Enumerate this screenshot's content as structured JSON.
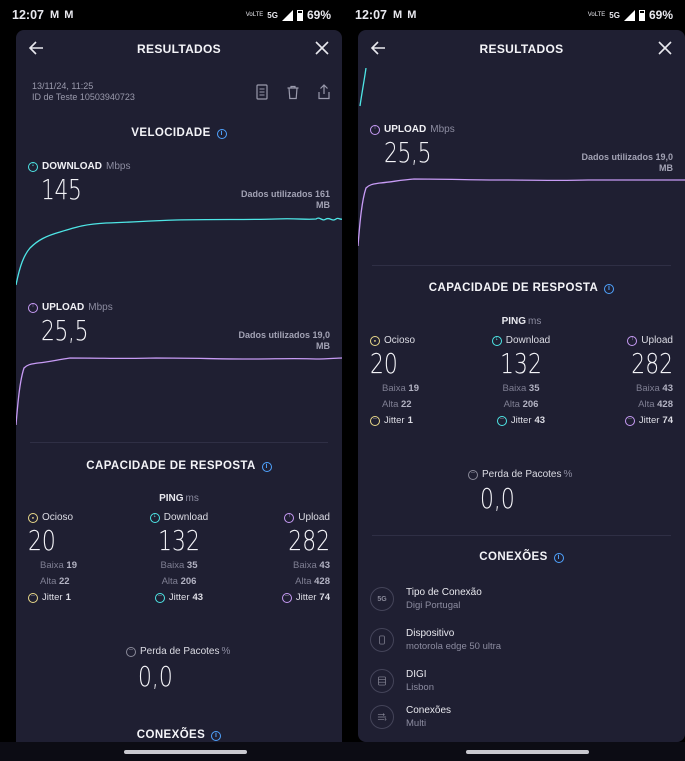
{
  "status": {
    "time": "12:07",
    "mail_icons": "M M",
    "volte": "VoLTE",
    "network": "5G",
    "battery": "69%"
  },
  "header": {
    "title": "RESULTADOS"
  },
  "test": {
    "date": "13/11/24, 11:25",
    "id_label": "ID de Teste 10503940723"
  },
  "speed": {
    "title": "VELOCIDADE",
    "download": {
      "label": "DOWNLOAD",
      "unit": "Mbps",
      "value": "145",
      "data_used_1": "Dados utilizados 161",
      "data_used_2": "MB"
    },
    "upload": {
      "label": "UPLOAD",
      "unit": "Mbps",
      "value": "25,5",
      "data_used_1": "Dados utilizados 19,0",
      "data_used_2": "MB"
    }
  },
  "responsiveness": {
    "title": "CAPACIDADE DE RESPOSTA",
    "ping_label": "PING",
    "ping_unit": "ms",
    "idle": {
      "label": "Ocioso",
      "value": "20",
      "low_label": "Baixa",
      "low": "19",
      "high_label": "Alta",
      "high": "22",
      "jitter_label": "Jitter",
      "jitter": "1"
    },
    "download": {
      "label": "Download",
      "value": "132",
      "low_label": "Baixa",
      "low": "35",
      "high_label": "Alta",
      "high": "206",
      "jitter_label": "Jitter",
      "jitter": "43"
    },
    "upload": {
      "label": "Upload",
      "value": "282",
      "low_label": "Baixa",
      "low": "43",
      "high_label": "Alta",
      "high": "428",
      "jitter_label": "Jitter",
      "jitter": "74"
    },
    "packet_loss": {
      "label": "Perda de Pacotes",
      "unit": "%",
      "value": "0,0"
    }
  },
  "connections": {
    "title": "CONEXÕES",
    "items": [
      {
        "icon": "5G",
        "label": "Tipo de Conexão",
        "value": "Digi Portugal"
      },
      {
        "icon": "device-icon",
        "label": "Dispositivo",
        "value": "motorola edge 50 ultra"
      },
      {
        "icon": "server-icon",
        "label": "DIGI",
        "value": "Lisbon"
      },
      {
        "icon": "connections-icon",
        "label": "Conexões",
        "value": "Multi"
      }
    ]
  },
  "colors": {
    "download": "#4ee6e6",
    "upload": "#c79bf5",
    "idle": "#e9d98a",
    "panel": "#1f1f32",
    "accent_info": "#4fa3ff"
  }
}
